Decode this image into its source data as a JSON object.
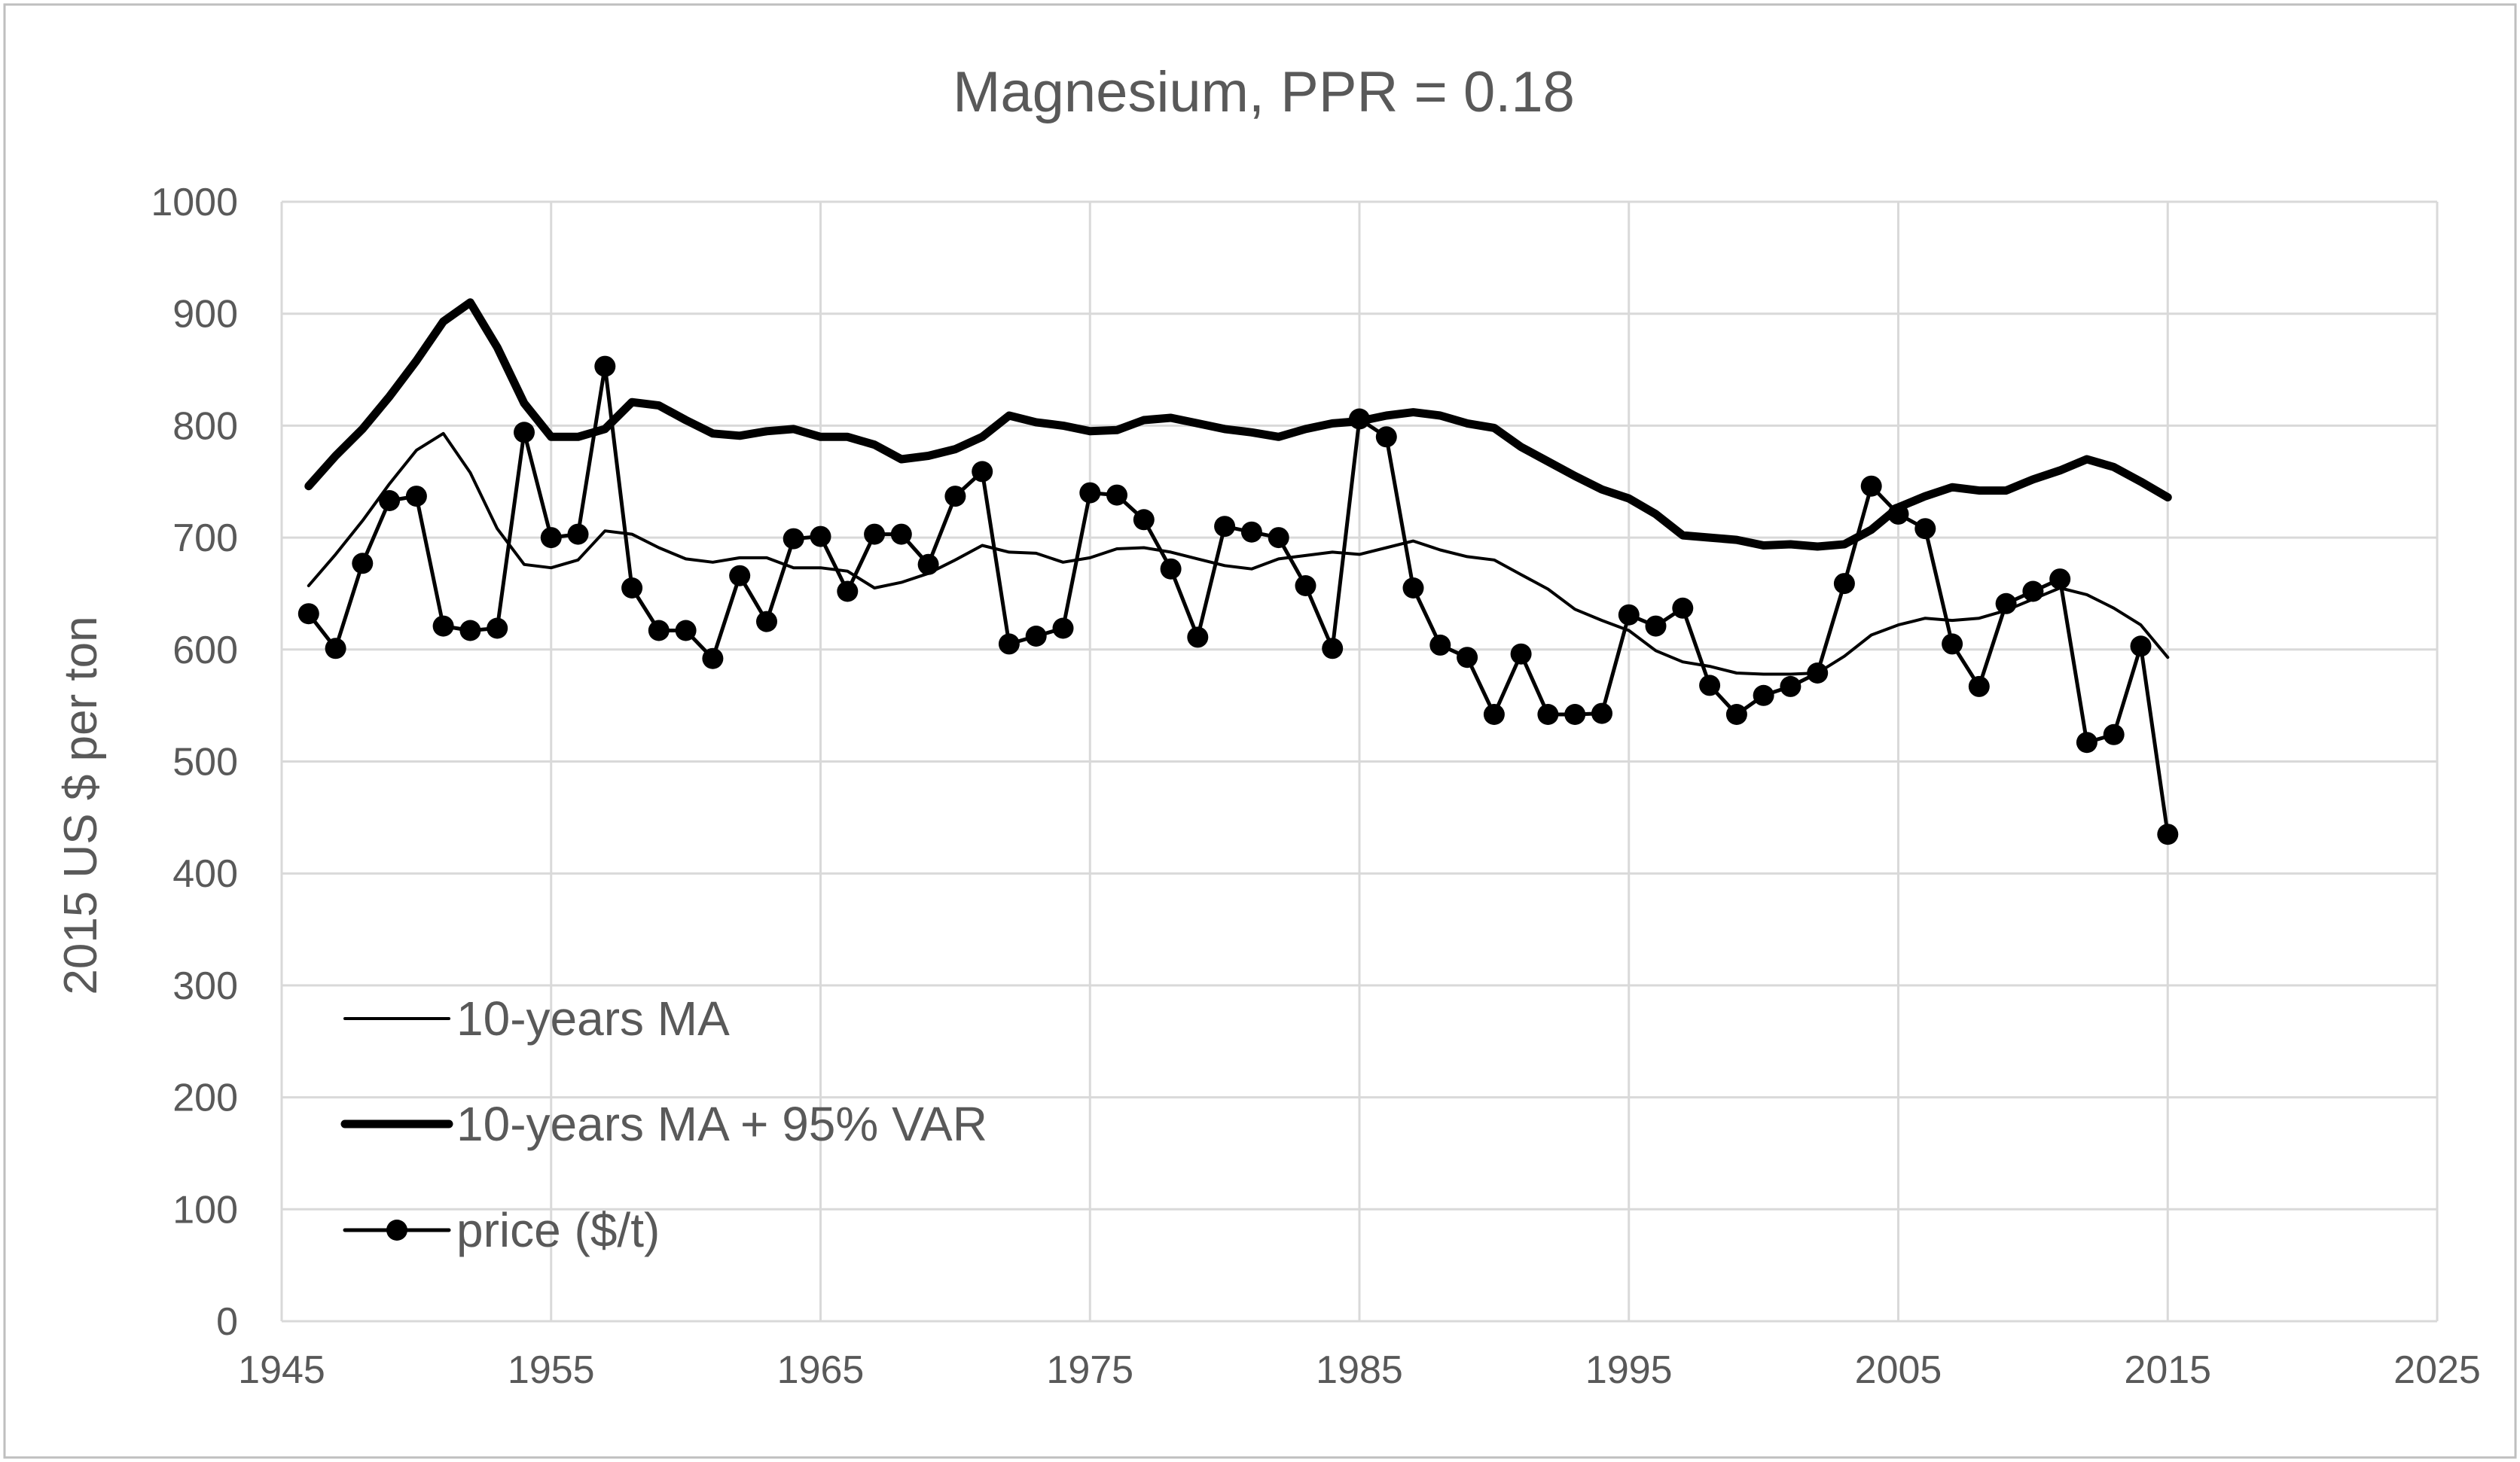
{
  "chart_data": {
    "type": "line",
    "title": "Magnesium, PPR = 0.18",
    "xlabel": "",
    "ylabel": "2015 US $ per ton",
    "xlim": [
      1945,
      2025
    ],
    "ylim": [
      0,
      1000
    ],
    "x_ticks": [
      1945,
      1955,
      1965,
      1975,
      1985,
      1995,
      2005,
      2015,
      2025
    ],
    "y_ticks": [
      0,
      100,
      200,
      300,
      400,
      500,
      600,
      700,
      800,
      900,
      1000
    ],
    "grid": true,
    "legend_position": "bottom-left",
    "series": [
      {
        "name": "10-years MA",
        "style": "thin-line",
        "x": [
          1946,
          1947,
          1948,
          1949,
          1950,
          1951,
          1952,
          1953,
          1954,
          1955,
          1956,
          1957,
          1958,
          1959,
          1960,
          1961,
          1962,
          1963,
          1964,
          1965,
          1966,
          1967,
          1968,
          1969,
          1970,
          1971,
          1972,
          1973,
          1974,
          1975,
          1976,
          1977,
          1978,
          1979,
          1980,
          1981,
          1982,
          1983,
          1984,
          1985,
          1986,
          1987,
          1988,
          1989,
          1990,
          1991,
          1992,
          1993,
          1994,
          1995,
          1996,
          1997,
          1998,
          1999,
          2000,
          2001,
          2002,
          2003,
          2004,
          2005,
          2006,
          2007,
          2008,
          2009,
          2010,
          2011,
          2012,
          2013,
          2014,
          2015
        ],
        "values": [
          657,
          685,
          715,
          748,
          778,
          793,
          758,
          708,
          676,
          673,
          680,
          706,
          703,
          691,
          681,
          678,
          682,
          682,
          673,
          673,
          670,
          655,
          660,
          668,
          680,
          693,
          687,
          686,
          678,
          682,
          690,
          691,
          687,
          681,
          675,
          672,
          681,
          684,
          687,
          685,
          691,
          697,
          689,
          683,
          680,
          667,
          654,
          636,
          626,
          617,
          599,
          589,
          585,
          579,
          578,
          578,
          579,
          594,
          613,
          622,
          628,
          626,
          628,
          635,
          645,
          655,
          649,
          637,
          622,
          593
        ]
      },
      {
        "name": "10-years MA + 95% VAR",
        "style": "thick-line",
        "x": [
          1946,
          1947,
          1948,
          1949,
          1950,
          1951,
          1952,
          1953,
          1954,
          1955,
          1956,
          1957,
          1958,
          1959,
          1960,
          1961,
          1962,
          1963,
          1964,
          1965,
          1966,
          1967,
          1968,
          1969,
          1970,
          1971,
          1972,
          1973,
          1974,
          1975,
          1976,
          1977,
          1978,
          1979,
          1980,
          1981,
          1982,
          1983,
          1984,
          1985,
          1986,
          1987,
          1988,
          1989,
          1990,
          1991,
          1992,
          1993,
          1994,
          1995,
          1996,
          1997,
          1998,
          1999,
          2000,
          2001,
          2002,
          2003,
          2004,
          2005,
          2006,
          2007,
          2008,
          2009,
          2010,
          2011,
          2012,
          2013,
          2014,
          2015
        ],
        "values": [
          746,
          773,
          797,
          826,
          858,
          893,
          910,
          870,
          820,
          790,
          790,
          797,
          821,
          818,
          805,
          793,
          791,
          795,
          797,
          790,
          790,
          783,
          770,
          773,
          779,
          790,
          809,
          803,
          800,
          795,
          796,
          805,
          807,
          802,
          797,
          794,
          790,
          797,
          802,
          804,
          809,
          812,
          809,
          802,
          798,
          781,
          768,
          755,
          743,
          735,
          721,
          702,
          700,
          698,
          693,
          694,
          692,
          694,
          707,
          727,
          737,
          745,
          742,
          742,
          752,
          760,
          770,
          763,
          750,
          736
        ]
      },
      {
        "name": "price ($/t)",
        "style": "line-markers",
        "x": [
          1946,
          1947,
          1948,
          1949,
          1950,
          1951,
          1952,
          1953,
          1954,
          1955,
          1956,
          1957,
          1958,
          1959,
          1960,
          1961,
          1962,
          1963,
          1964,
          1965,
          1966,
          1967,
          1968,
          1969,
          1970,
          1971,
          1972,
          1973,
          1974,
          1975,
          1976,
          1977,
          1978,
          1979,
          1980,
          1981,
          1982,
          1983,
          1984,
          1985,
          1986,
          1987,
          1988,
          1989,
          1990,
          1991,
          1992,
          1993,
          1994,
          1995,
          1996,
          1997,
          1998,
          1999,
          2000,
          2001,
          2002,
          2003,
          2004,
          2005,
          2006,
          2007,
          2008,
          2009,
          2010,
          2011,
          2012,
          2013,
          2014,
          2015
        ],
        "values": [
          632,
          601,
          677,
          733,
          737,
          621,
          617,
          619,
          794,
          700,
          703,
          853,
          655,
          617,
          617,
          592,
          666,
          625,
          699,
          701,
          652,
          703,
          703,
          676,
          737,
          759,
          605,
          612,
          619,
          740,
          738,
          716,
          672,
          611,
          710,
          705,
          700,
          657,
          601,
          806,
          790,
          655,
          604,
          593,
          542,
          596,
          542,
          542,
          543,
          631,
          621,
          637,
          568,
          542,
          559,
          567,
          579,
          659,
          746,
          721,
          708,
          605,
          567,
          641,
          652,
          663,
          517,
          524,
          603,
          435
        ]
      }
    ]
  }
}
